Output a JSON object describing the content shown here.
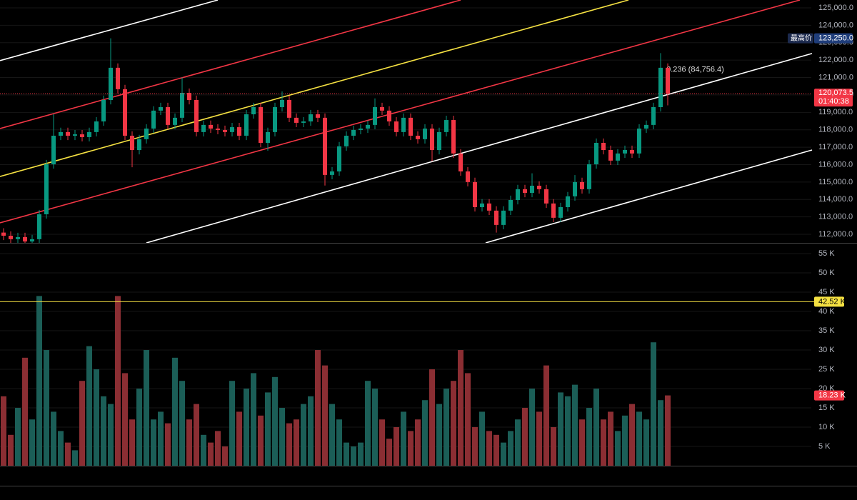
{
  "chart_data": [
    {
      "type": "candlestick",
      "open": [
        112100,
        111920,
        111720,
        111840,
        111590,
        111720,
        113150,
        116020,
        117660,
        117870,
        117660,
        117740,
        117580,
        117870,
        118480,
        119710,
        121560,
        120330,
        117660,
        116840,
        117460,
        118070,
        119100,
        119300,
        118280,
        118690,
        120120,
        119710,
        117870,
        118280,
        118070,
        117990,
        117870,
        118150,
        117660,
        118890,
        119300,
        117250,
        117870,
        119300,
        119710,
        118690,
        118400,
        118480,
        118890,
        118690,
        115410,
        115610,
        117050,
        117660,
        117990,
        118070,
        118280,
        119300,
        119100,
        118480,
        117870,
        118690,
        117660,
        117460,
        118070,
        116840,
        117870,
        118560,
        116640,
        115610,
        115000,
        113560,
        113770,
        113360,
        112540,
        113360,
        113970,
        114590,
        114380,
        114790,
        114590,
        113770,
        112950,
        113560,
        114180,
        115000,
        114590,
        116020,
        117250,
        116840,
        116230,
        116640,
        116840,
        116640,
        118070,
        118280,
        119300,
        121560
      ],
      "high": [
        112350,
        112170,
        112090,
        112090,
        111970,
        113400,
        116270,
        118900,
        118120,
        118120,
        117990,
        117990,
        118120,
        118730,
        119960,
        123250,
        121810,
        120580,
        117910,
        117710,
        118320,
        119350,
        119550,
        119550,
        118940,
        121000,
        120370,
        119960,
        118530,
        118530,
        118320,
        118240,
        118400,
        118400,
        119140,
        119550,
        119550,
        118120,
        119550,
        120200,
        119960,
        118940,
        118730,
        119140,
        119140,
        118940,
        115860,
        117300,
        117910,
        118240,
        118320,
        118530,
        119800,
        119550,
        119350,
        118730,
        118940,
        118940,
        117910,
        118320,
        118320,
        118120,
        118810,
        118810,
        116890,
        115860,
        115250,
        114020,
        114020,
        113610,
        113610,
        114220,
        114840,
        114840,
        115500,
        115040,
        114840,
        114020,
        113810,
        114430,
        115400,
        115250,
        116270,
        117500,
        117500,
        117090,
        116890,
        117090,
        117090,
        118320,
        118530,
        119550,
        122400,
        121810
      ],
      "low": [
        111670,
        111470,
        111470,
        111340,
        111340,
        111470,
        112900,
        115770,
        117410,
        117410,
        117410,
        117330,
        117330,
        117620,
        118230,
        119460,
        120080,
        117410,
        115850,
        116590,
        117210,
        117820,
        118850,
        118030,
        118030,
        118440,
        119460,
        117620,
        117620,
        117820,
        117740,
        117620,
        117620,
        117410,
        117410,
        118640,
        117000,
        116800,
        117620,
        119050,
        118440,
        118150,
        118150,
        118230,
        118440,
        114800,
        115160,
        115360,
        116800,
        117410,
        117740,
        117820,
        118030,
        118850,
        118230,
        117620,
        117620,
        117410,
        117210,
        117210,
        116200,
        116590,
        117620,
        116390,
        115360,
        114750,
        113310,
        113310,
        113110,
        112100,
        112290,
        113110,
        113720,
        114130,
        114130,
        114340,
        113520,
        112700,
        112700,
        113310,
        113930,
        114340,
        114340,
        115770,
        116590,
        115980,
        115980,
        116390,
        116390,
        116390,
        117820,
        118030,
        119050,
        119400
      ],
      "close": [
        111920,
        111720,
        111840,
        111590,
        111720,
        113150,
        116020,
        117660,
        117870,
        117660,
        117740,
        117580,
        117870,
        118480,
        119710,
        121560,
        120330,
        117660,
        116840,
        117460,
        118070,
        119100,
        119300,
        118280,
        118690,
        120120,
        119710,
        117870,
        118280,
        118070,
        117990,
        117870,
        118150,
        117660,
        118890,
        119300,
        117250,
        117870,
        119300,
        119710,
        118690,
        118400,
        118480,
        118890,
        118690,
        115410,
        115610,
        117050,
        117660,
        117990,
        118070,
        118280,
        119300,
        119100,
        118480,
        117870,
        118690,
        117660,
        117460,
        118070,
        116840,
        117870,
        118560,
        116640,
        115610,
        115000,
        113560,
        113770,
        113360,
        112540,
        113360,
        113970,
        114590,
        114380,
        114790,
        114590,
        113770,
        112950,
        113560,
        114180,
        115000,
        114590,
        116020,
        117250,
        116840,
        116230,
        116640,
        116840,
        116640,
        118070,
        118280,
        119300,
        121560,
        120073.5
      ],
      "up_color": "#089981",
      "down_color": "#f23645",
      "ylim": [
        111510,
        125450
      ],
      "yticks": [
        {
          "value": 112000,
          "label": "112,000.0"
        },
        {
          "value": 113000,
          "label": "113,000.0"
        },
        {
          "value": 114000,
          "label": "114,000.0"
        },
        {
          "value": 115000,
          "label": "115,000.0"
        },
        {
          "value": 116000,
          "label": "116,000.0"
        },
        {
          "value": 117000,
          "label": "117,000.0"
        },
        {
          "value": 118000,
          "label": "118,000.0"
        },
        {
          "value": 119000,
          "label": "119,000.0"
        },
        {
          "value": 120000,
          "label": "120,000.0"
        },
        {
          "value": 121000,
          "label": "121,000.0"
        },
        {
          "value": 122000,
          "label": "122,000.0"
        },
        {
          "value": 123000,
          "label": "123,000.0"
        },
        {
          "value": 124000,
          "label": "124,000.0"
        },
        {
          "value": 125000,
          "label": "125,000.0"
        }
      ],
      "grid": true,
      "current_price": 120073.5,
      "current_price_label": "120,073.5",
      "countdown": "01:40:38",
      "high_title": "最高价",
      "high_value": 123250,
      "high_value_label": "123,250.0",
      "drawings": [
        {
          "color": "#ffffff",
          "start": [
            -0.5,
            121970
          ],
          "end": [
            30,
            125450
          ]
        },
        {
          "color": "#f23645",
          "start": [
            -0.5,
            118070
          ],
          "end": [
            64,
            125450
          ]
        },
        {
          "color": "#f5e142",
          "start": [
            -0.5,
            115320
          ],
          "end": [
            87.5,
            125450
          ]
        },
        {
          "color": "#f23645",
          "start": [
            -0.5,
            112660
          ],
          "end": [
            111.5,
            125450
          ]
        },
        {
          "color": "#ffffff",
          "start": [
            20,
            111510
          ],
          "end": [
            113.2,
            122380
          ],
          "label": "0.236 (84,756.4)"
        },
        {
          "color": "#ffffff",
          "start": [
            67.5,
            111510
          ],
          "end": [
            113.2,
            116840
          ]
        }
      ]
    },
    {
      "type": "bar",
      "values": [
        18,
        8,
        15,
        28,
        12,
        44,
        30,
        14,
        9,
        6,
        4,
        22,
        31,
        25,
        18,
        16,
        44,
        24,
        12,
        20,
        30,
        12,
        14,
        11,
        28,
        22,
        12,
        16,
        8,
        6,
        9,
        5,
        22,
        14,
        20,
        24,
        13,
        19,
        23,
        15,
        11,
        12,
        16,
        18,
        30,
        26,
        16,
        12,
        6,
        5,
        6,
        22,
        20,
        12,
        7,
        10,
        14,
        9,
        12,
        17,
        25,
        16,
        20,
        22,
        30,
        24,
        10,
        14,
        9,
        8,
        6,
        9,
        12,
        15,
        20,
        14,
        26,
        10,
        19,
        18,
        21,
        12,
        15,
        20,
        12,
        14,
        9,
        13,
        16,
        14,
        12,
        32,
        17,
        18.23
      ],
      "up_color": "#1b5e57",
      "down_color": "#8b2e33",
      "ylim": [
        0,
        57.6
      ],
      "yticks": [
        {
          "value": 5,
          "label": "5 K"
        },
        {
          "value": 10,
          "label": "10 K"
        },
        {
          "value": 15,
          "label": "15 K"
        },
        {
          "value": 20,
          "label": "20 K"
        },
        {
          "value": 25,
          "label": "25 K"
        },
        {
          "value": 30,
          "label": "30 K"
        },
        {
          "value": 35,
          "label": "35 K"
        },
        {
          "value": 40,
          "label": "40 K"
        },
        {
          "value": 45,
          "label": "45 K"
        },
        {
          "value": 50,
          "label": "50 K"
        },
        {
          "value": 55,
          "label": "55 K"
        }
      ],
      "reference_line": {
        "value": 42.52,
        "label": "42.52 K"
      },
      "reference_color": "#f5e142",
      "last_value_label": "18.23 K"
    }
  ]
}
